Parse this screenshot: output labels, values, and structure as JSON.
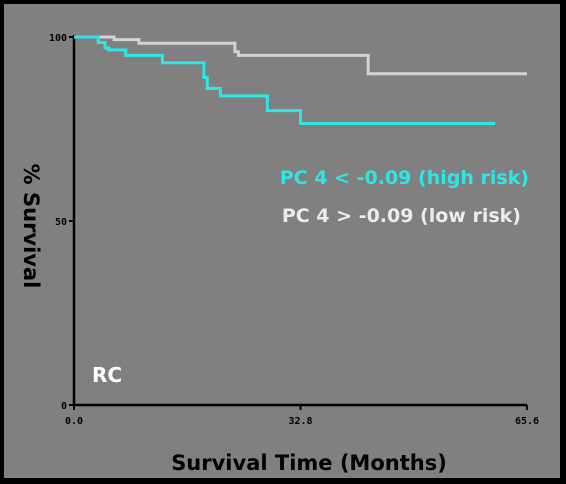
{
  "chart_data": {
    "type": "line",
    "xlabel": "Survival Time (Months)",
    "ylabel": "% Survival",
    "xlim": [
      0,
      65.6
    ],
    "ylim": [
      0,
      100
    ],
    "xticks": [
      "0.0",
      "32.8",
      "65.6"
    ],
    "yticks": [
      "0",
      "50",
      "100"
    ],
    "grid": false,
    "legend_placement": "right",
    "annotation": "RC",
    "series": [
      {
        "name": "PC 4 < -0.09 (high risk)",
        "color": "#2ee6e6",
        "x": [
          0,
          3.5,
          4.5,
          5.0,
          7.5,
          12.8,
          18.8,
          19.3,
          21.2,
          28.0,
          32.8,
          61.0
        ],
        "y": [
          100,
          98.5,
          97,
          96.5,
          95,
          93,
          89,
          86,
          84,
          80,
          76.5,
          76.5
        ]
      },
      {
        "name": "PC 4 > -0.09 (low risk)",
        "color": "#d3d3d3",
        "x": [
          0,
          5.8,
          9.4,
          23.3,
          23.8,
          42.6,
          65.6
        ],
        "y": [
          100,
          99.3,
          98.3,
          96,
          95,
          90,
          90
        ]
      }
    ]
  }
}
